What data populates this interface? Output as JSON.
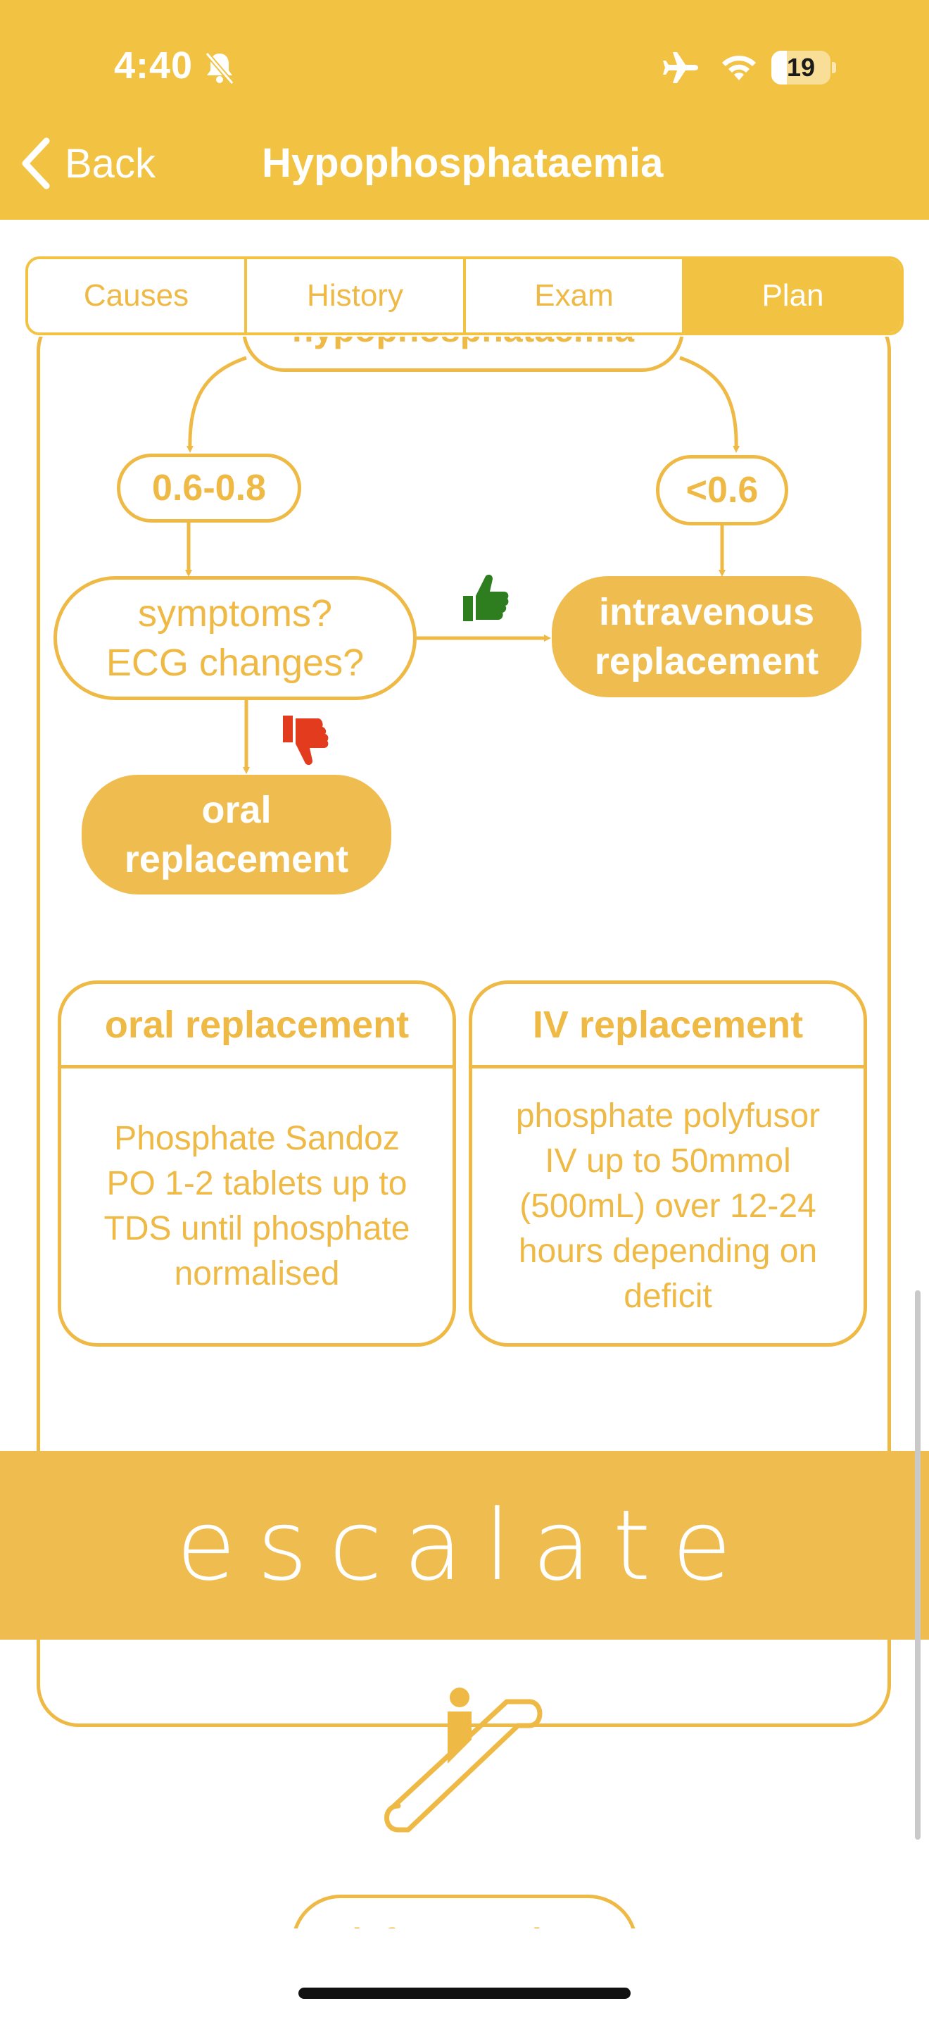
{
  "status_bar": {
    "time": "4:40",
    "battery": "19",
    "icons": [
      "bell-slash-icon",
      "airplane-icon",
      "wifi-icon",
      "battery-icon"
    ]
  },
  "nav": {
    "back_label": "Back",
    "title": "Hypophosphataemia"
  },
  "tabs": [
    {
      "label": "Causes",
      "active": false
    },
    {
      "label": "History",
      "active": false
    },
    {
      "label": "Exam",
      "active": false
    },
    {
      "label": "Plan",
      "active": true
    }
  ],
  "flowchart": {
    "top_node": "hypophosphataemia",
    "range_left": "0.6-0.8",
    "range_right": "<0.6",
    "question_line1": "symptoms?",
    "question_line2": "ECG changes?",
    "iv_line1": "intravenous",
    "iv_line2": "replacement",
    "oral_line1": "oral",
    "oral_line2": "replacement",
    "yes_icon": "thumbs-up-icon",
    "no_icon": "thumbs-down-icon"
  },
  "cards": {
    "oral": {
      "title": "oral replacement",
      "body": "Phosphate Sandoz PO 1-2 tablets up to TDS until phosphate normalised"
    },
    "iv": {
      "title": "IV replacement",
      "body": "phosphate polyfusor IV up to 50mmol (500mL) over 12-24 hours depending on deficit"
    }
  },
  "escalate": {
    "label": "escalate",
    "icon": "escalator-icon",
    "button_label": "inform senior"
  },
  "colors": {
    "header": "#f2c343",
    "accent": "#efb945",
    "filled_node": "#efbd4f",
    "thumb_up": "#2e7d1f",
    "thumb_down": "#e23b1e"
  }
}
